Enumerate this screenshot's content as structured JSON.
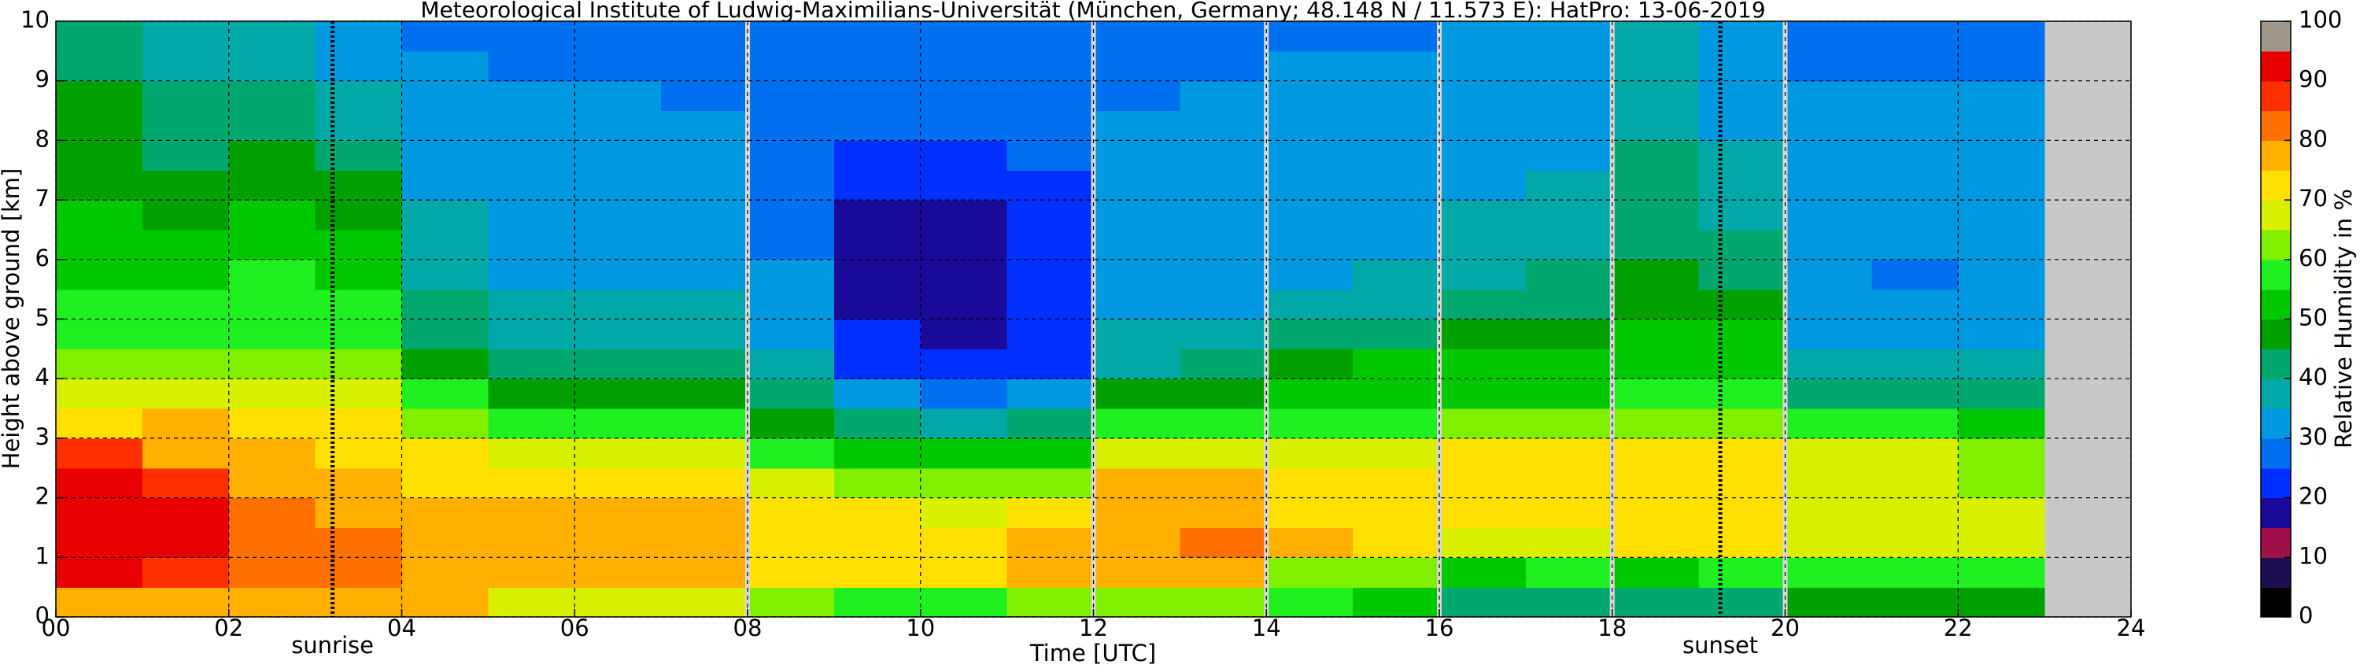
{
  "chart_data": {
    "type": "heatmap",
    "title": "Meteorological Institute of Ludwig-Maximilians-Universität (München, Germany; 48.148 N / 11.573 E):    HatPro: 13-06-2019",
    "xlabel": "Time [UTC]",
    "ylabel": "Height above ground [km]",
    "xlim": [
      0,
      24
    ],
    "ylim": [
      0,
      10
    ],
    "xticks": [
      {
        "value": 0,
        "label": "00"
      },
      {
        "value": 2,
        "label": "02"
      },
      {
        "value": 4,
        "label": "04"
      },
      {
        "value": 6,
        "label": "06"
      },
      {
        "value": 8,
        "label": "08"
      },
      {
        "value": 10,
        "label": "10"
      },
      {
        "value": 12,
        "label": "12"
      },
      {
        "value": 14,
        "label": "14"
      },
      {
        "value": 16,
        "label": "16"
      },
      {
        "value": 18,
        "label": "18"
      },
      {
        "value": 20,
        "label": "20"
      },
      {
        "value": 22,
        "label": "22"
      },
      {
        "value": 24,
        "label": "24"
      }
    ],
    "yticks": [
      0,
      1,
      2,
      3,
      4,
      5,
      6,
      7,
      8,
      9,
      10
    ],
    "grid": true,
    "xbins": [
      0,
      1,
      2,
      3,
      4,
      5,
      6,
      7,
      8,
      9,
      10,
      11,
      12,
      13,
      14,
      15,
      16,
      17,
      18,
      19,
      20,
      21,
      22,
      23
    ],
    "ybins": [
      0,
      0.5,
      1,
      1.5,
      2,
      2.5,
      3,
      3.5,
      4,
      4.5,
      5,
      5.5,
      6,
      6.5,
      7,
      7.5,
      8,
      8.5,
      9,
      9.5,
      10
    ],
    "z": [
      [
        75,
        90,
        92,
        92,
        90,
        88,
        72,
        65,
        60,
        58,
        55,
        52,
        50,
        50,
        48,
        47,
        48,
        45,
        42,
        40
      ],
      [
        78,
        88,
        92,
        90,
        85,
        78,
        75,
        68,
        62,
        58,
        55,
        53,
        52,
        48,
        45,
        44,
        42,
        40,
        38,
        37
      ],
      [
        78,
        80,
        80,
        80,
        78,
        76,
        72,
        68,
        62,
        58,
        57,
        55,
        53,
        52,
        48,
        46,
        42,
        40,
        38,
        36
      ],
      [
        78,
        80,
        80,
        78,
        77,
        74,
        70,
        65,
        60,
        57,
        55,
        52,
        50,
        48,
        45,
        42,
        38,
        36,
        33,
        32
      ],
      [
        75,
        78,
        78,
        76,
        74,
        70,
        62,
        55,
        48,
        44,
        40,
        38,
        36,
        35,
        33,
        32,
        31,
        30,
        30,
        29
      ],
      [
        68,
        76,
        76,
        76,
        74,
        68,
        55,
        45,
        40,
        37,
        35,
        34,
        33,
        33,
        32,
        32,
        31,
        30,
        29,
        28
      ],
      [
        68,
        76,
        76,
        75,
        74,
        68,
        55,
        46,
        40,
        37,
        35,
        34,
        33,
        32,
        32,
        31,
        30,
        30,
        29,
        28
      ],
      [
        66,
        76,
        76,
        76,
        74,
        67,
        55,
        47,
        40,
        37,
        35,
        33,
        33,
        32,
        31,
        31,
        30,
        29,
        28,
        27
      ],
      [
        60,
        74,
        74,
        72,
        68,
        58,
        48,
        40,
        36,
        33,
        31,
        30,
        28,
        27,
        27,
        27,
        27,
        26,
        26,
        25
      ],
      [
        58,
        74,
        74,
        70,
        62,
        52,
        40,
        32,
        24,
        20,
        19,
        18,
        18,
        19,
        20,
        24,
        26,
        27,
        27,
        26
      ],
      [
        58,
        74,
        74,
        68,
        60,
        50,
        38,
        28,
        20,
        18,
        17,
        18,
        18,
        19,
        20,
        23,
        26,
        27,
        27,
        26
      ],
      [
        60,
        75,
        75,
        70,
        64,
        54,
        40,
        30,
        22,
        21,
        20,
        20,
        21,
        22,
        23,
        26,
        28,
        28,
        27,
        26
      ],
      [
        62,
        78,
        78,
        77,
        75,
        68,
        55,
        45,
        38,
        35,
        33,
        32,
        32,
        31,
        31,
        30,
        30,
        29,
        29,
        28
      ],
      [
        62,
        78,
        80,
        78,
        75,
        68,
        56,
        46,
        40,
        36,
        34,
        33,
        32,
        32,
        31,
        31,
        30,
        30,
        29,
        28
      ],
      [
        55,
        64,
        75,
        74,
        72,
        66,
        57,
        52,
        48,
        42,
        36,
        34,
        33,
        33,
        32,
        32,
        31,
        30,
        30,
        29
      ],
      [
        54,
        62,
        74,
        74,
        72,
        65,
        56,
        52,
        50,
        42,
        38,
        35,
        34,
        33,
        32,
        32,
        31,
        31,
        30,
        29
      ],
      [
        42,
        54,
        68,
        70,
        72,
        70,
        60,
        53,
        50,
        46,
        42,
        38,
        36,
        35,
        34,
        33,
        33,
        32,
        32,
        31
      ],
      [
        42,
        55,
        68,
        70,
        72,
        70,
        60,
        53,
        52,
        48,
        44,
        40,
        38,
        36,
        35,
        34,
        33,
        33,
        32,
        31
      ],
      [
        42,
        52,
        72,
        74,
        74,
        72,
        64,
        58,
        54,
        50,
        48,
        46,
        44,
        42,
        40,
        40,
        38,
        38,
        37,
        36
      ],
      [
        43,
        55,
        70,
        72,
        72,
        70,
        64,
        58,
        54,
        50,
        45,
        42,
        40,
        38,
        36,
        35,
        34,
        34,
        33,
        32
      ],
      [
        45,
        55,
        66,
        68,
        68,
        66,
        56,
        42,
        36,
        34,
        33,
        32,
        32,
        31,
        31,
        31,
        30,
        30,
        29,
        29
      ],
      [
        45,
        55,
        68,
        68,
        68,
        65,
        55,
        40,
        35,
        33,
        31,
        28,
        30,
        31,
        31,
        31,
        30,
        30,
        29,
        29
      ],
      [
        48,
        55,
        65,
        65,
        64,
        60,
        54,
        42,
        36,
        34,
        33,
        33,
        33,
        32,
        32,
        31,
        30,
        30,
        29,
        29
      ]
    ],
    "no_data_color": "#c8c8c8",
    "data_gaps": [
      8,
      12,
      14,
      16,
      18,
      20
    ],
    "annotations": [
      {
        "text": "sunrise",
        "x": 3.2
      },
      {
        "text": "sunset",
        "x": 19.25
      }
    ],
    "colorbar": {
      "label": "Relative Humidity in %",
      "clim": [
        0,
        100
      ],
      "ticks": [
        0,
        10,
        20,
        30,
        40,
        50,
        60,
        70,
        80,
        90,
        100
      ],
      "colors": [
        "#000000",
        "#1c0c50",
        "#a0104a",
        "#1a0a9a",
        "#0030ff",
        "#0070f0",
        "#0098e0",
        "#00a8a8",
        "#00a870",
        "#00a000",
        "#00c800",
        "#20f020",
        "#80f000",
        "#d8f000",
        "#ffe000",
        "#ffb000",
        "#ff7000",
        "#ff3000",
        "#e80000",
        "#a09888"
      ]
    }
  }
}
